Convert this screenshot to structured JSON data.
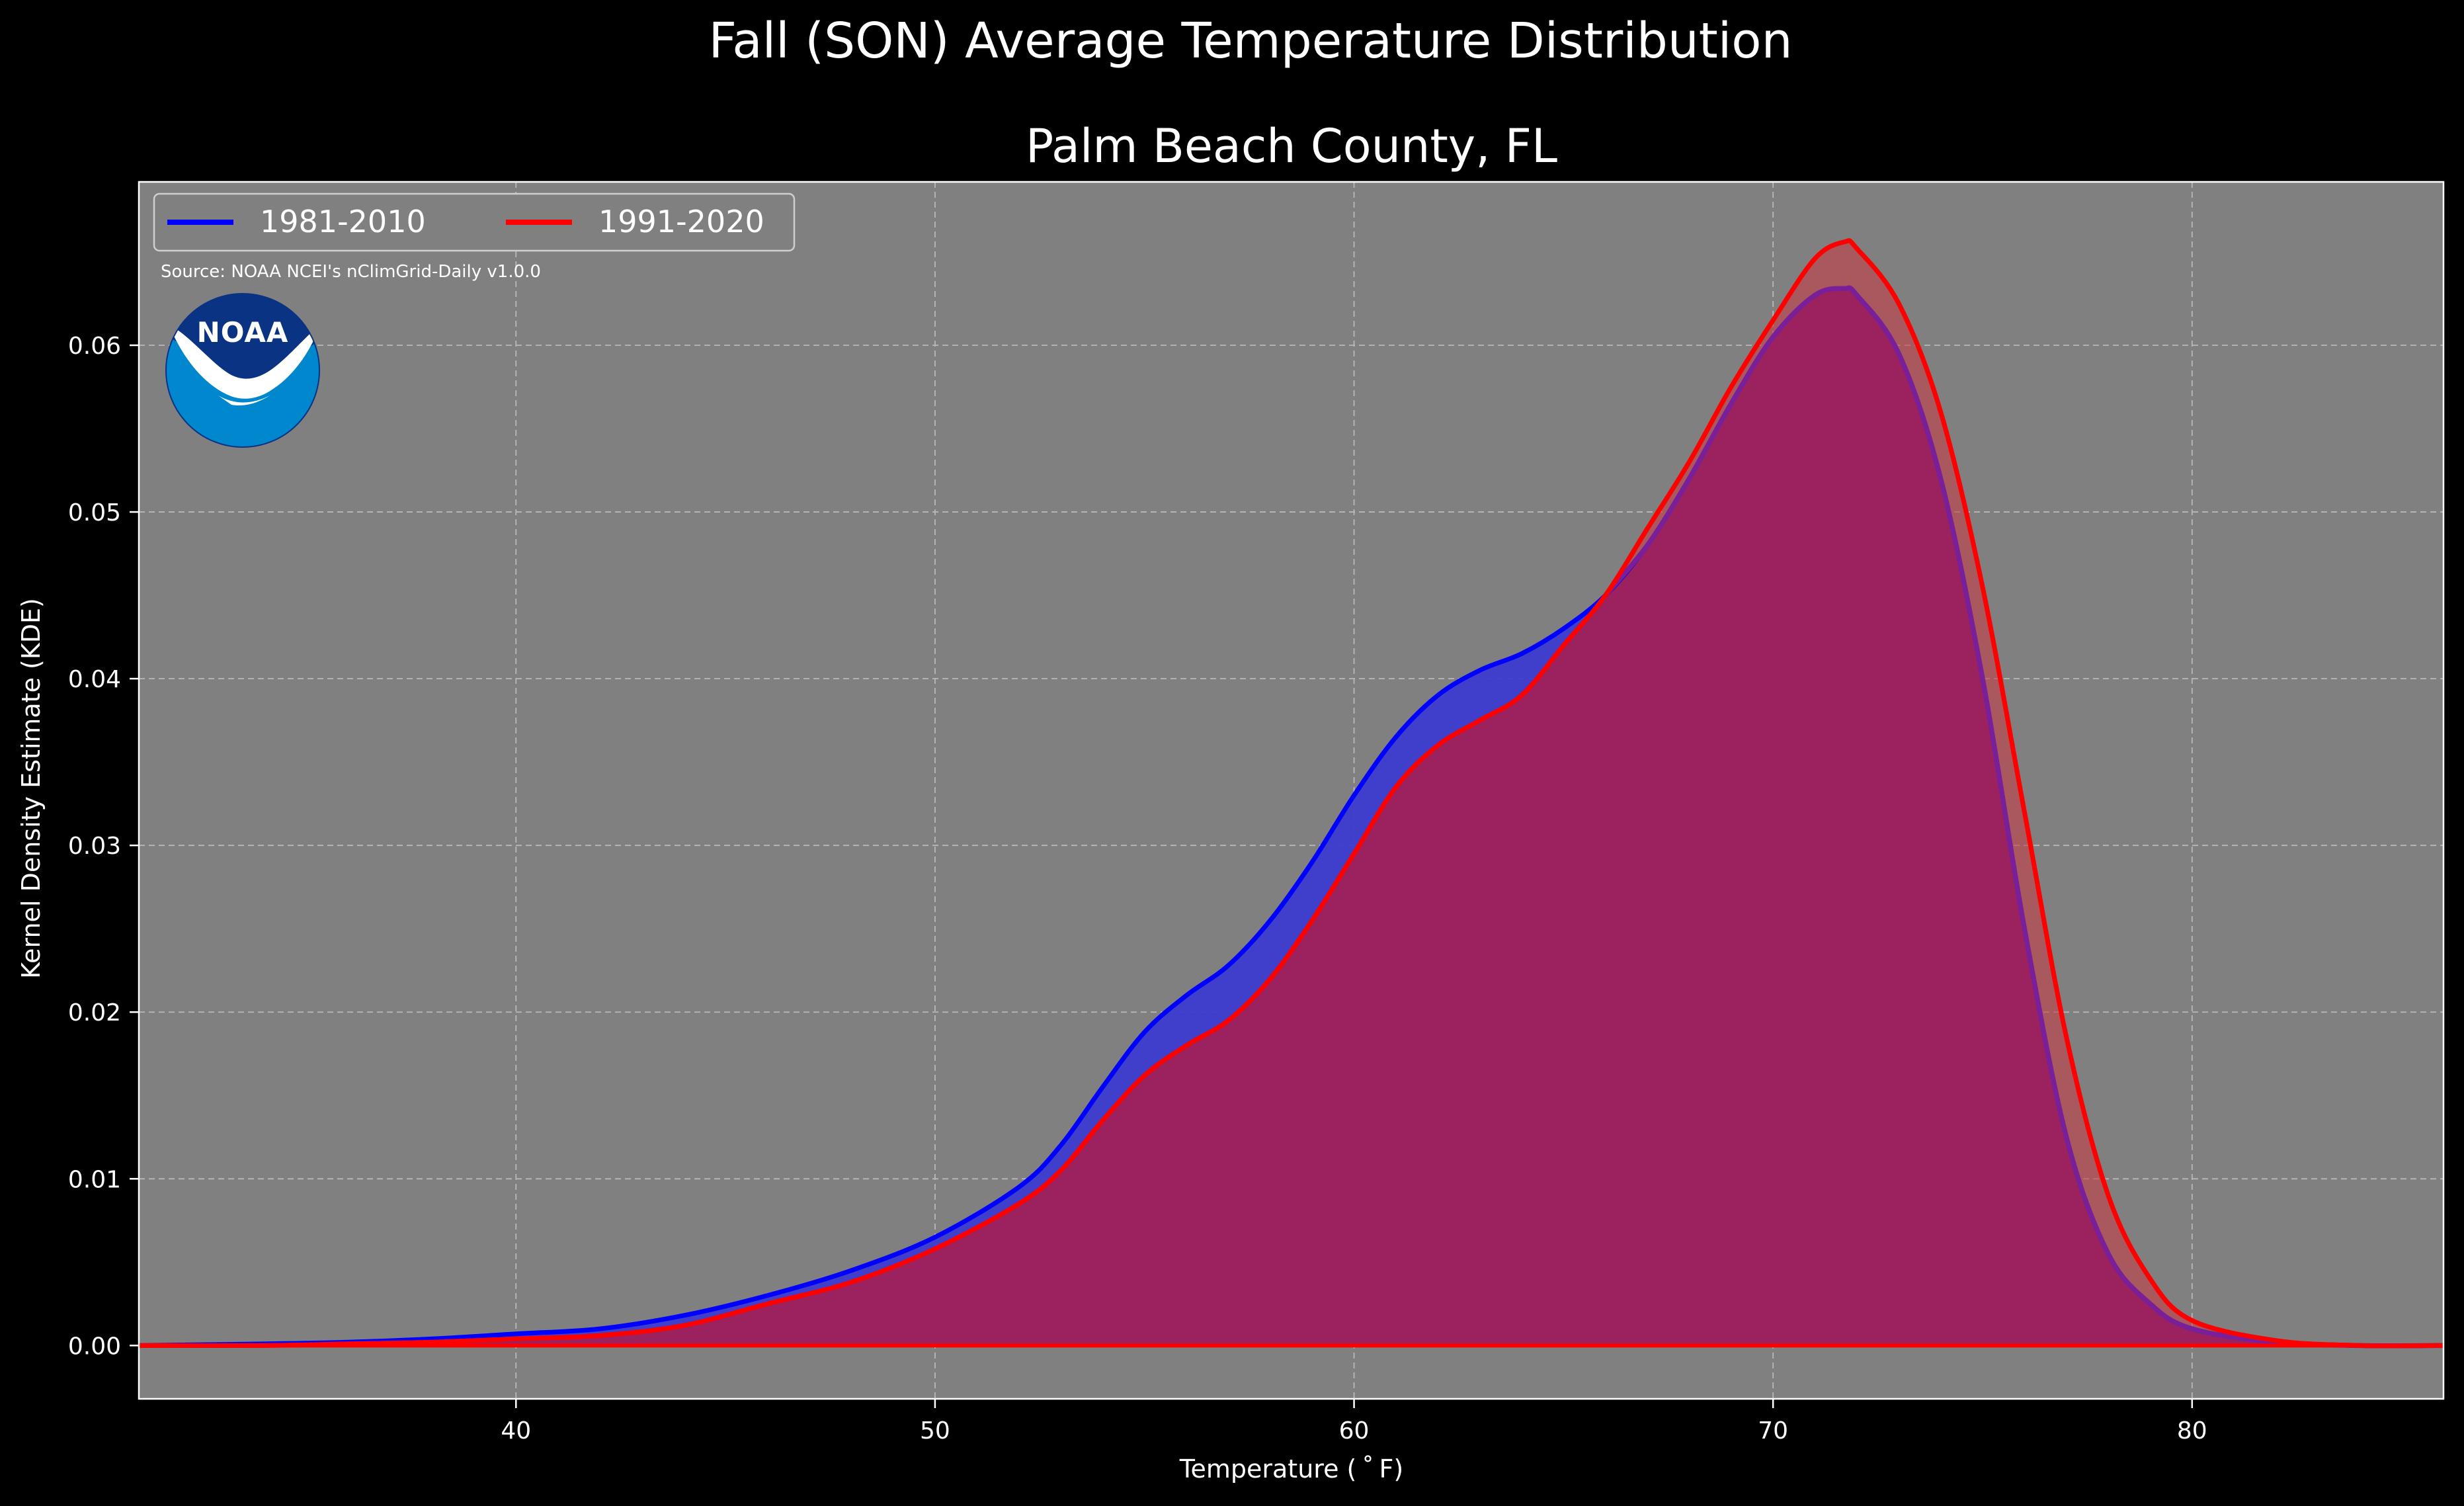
{
  "chart_data": {
    "type": "area",
    "suptitle": "Fall (SON) Average Temperature Distribution",
    "title": "Palm Beach County, FL",
    "xlabel": "Temperature ($^\\circ$F)",
    "xlabel_display": "Temperature ( ˚ F)",
    "ylabel": "Kernel Density Estimate (KDE)",
    "xlim": [
      31,
      86
    ],
    "ylim": [
      -0.0032,
      0.0698
    ],
    "x_ticks": [
      40,
      50,
      60,
      70,
      80
    ],
    "y_ticks": [
      0.0,
      0.01,
      0.02,
      0.03,
      0.04,
      0.05,
      0.06
    ],
    "x_tick_labels": [
      "40",
      "50",
      "60",
      "70",
      "80"
    ],
    "y_tick_labels": [
      "0.00",
      "0.01",
      "0.02",
      "0.03",
      "0.04",
      "0.05",
      "0.06"
    ],
    "grid": true,
    "legend_placement": "upper-left",
    "source_note": "Source: NOAA NCEI's nClimGrid-Daily v1.0.0",
    "logo_text": "NOAA",
    "colors": {
      "background": "#000000",
      "axes_face": "#808080",
      "series_1": "#0000ff",
      "series_2": "#ff0000",
      "fill_1": "#3b3bd0",
      "fill_2": "#c44048",
      "overlap": "#9c1f5c",
      "logo_dark": "#0a3384",
      "logo_light": "#0087cd"
    },
    "series": [
      {
        "name": "1981-2010",
        "color": "#0000ff",
        "x": [
          31,
          34,
          36,
          38,
          40,
          42,
          44,
          46,
          48,
          50,
          52,
          53,
          54,
          55,
          56,
          57,
          58,
          59,
          60,
          61,
          62,
          63,
          64,
          65,
          66,
          67,
          68,
          69,
          70,
          71,
          71.7,
          72,
          73,
          74,
          75,
          76,
          77,
          78,
          79,
          80,
          82,
          84,
          86
        ],
        "y": [
          0.0,
          0.0001,
          0.0002,
          0.0004,
          0.0007,
          0.001,
          0.0018,
          0.003,
          0.0045,
          0.0065,
          0.0095,
          0.012,
          0.0155,
          0.0188,
          0.021,
          0.0228,
          0.0255,
          0.029,
          0.033,
          0.0365,
          0.039,
          0.0405,
          0.0415,
          0.043,
          0.045,
          0.048,
          0.052,
          0.0565,
          0.0605,
          0.063,
          0.0634,
          0.063,
          0.0595,
          0.052,
          0.04,
          0.025,
          0.0125,
          0.0055,
          0.0025,
          0.001,
          0.0002,
          0.0,
          0.0
        ]
      },
      {
        "name": "1991-2020",
        "color": "#ff0000",
        "x": [
          31,
          34,
          36,
          38,
          40,
          42,
          44,
          46,
          48,
          50,
          52,
          53,
          54,
          55,
          56,
          57,
          58,
          59,
          60,
          61,
          62,
          63,
          64,
          65,
          66,
          67,
          68,
          69,
          70,
          71,
          71.7,
          72,
          73,
          74,
          75,
          76,
          77,
          78,
          79,
          80,
          82,
          84,
          86
        ],
        "y": [
          0.0,
          0.0,
          0.0001,
          0.0002,
          0.0004,
          0.0006,
          0.0012,
          0.0025,
          0.0038,
          0.0058,
          0.0085,
          0.0105,
          0.0135,
          0.0162,
          0.018,
          0.0195,
          0.022,
          0.0255,
          0.0295,
          0.0335,
          0.036,
          0.0375,
          0.039,
          0.042,
          0.045,
          0.049,
          0.053,
          0.0575,
          0.0615,
          0.0652,
          0.0662,
          0.0658,
          0.0625,
          0.056,
          0.0455,
          0.032,
          0.0185,
          0.009,
          0.004,
          0.0015,
          0.0003,
          0.0,
          0.0
        ]
      }
    ]
  }
}
